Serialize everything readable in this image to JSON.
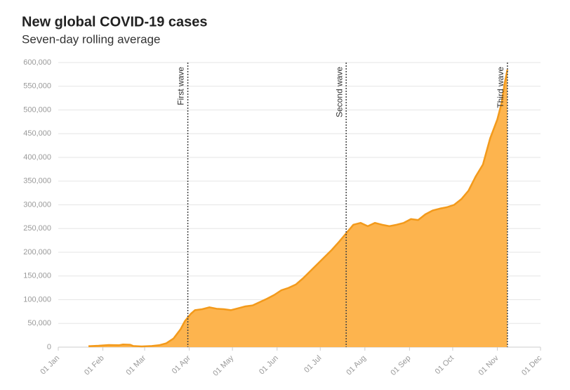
{
  "chart_data": {
    "type": "area",
    "title": "New global COVID-19 cases",
    "subtitle": "Seven-day rolling average",
    "x": [
      21,
      28,
      35,
      42,
      45,
      50,
      52,
      58,
      65,
      70,
      75,
      80,
      85,
      88,
      92,
      95,
      100,
      105,
      110,
      115,
      120,
      125,
      130,
      135,
      140,
      145,
      150,
      155,
      160,
      165,
      170,
      175,
      180,
      185,
      190,
      195,
      200,
      205,
      210,
      215,
      220,
      225,
      230,
      235,
      240,
      245,
      250,
      255,
      260,
      265,
      270,
      275,
      280,
      285,
      290,
      295,
      300,
      305,
      308,
      310,
      312
    ],
    "values": [
      2000,
      3000,
      4500,
      4000,
      5500,
      5000,
      2500,
      1500,
      2500,
      4000,
      8000,
      18000,
      38000,
      55000,
      70000,
      78000,
      80000,
      84000,
      81000,
      80000,
      78000,
      82000,
      86000,
      88000,
      95000,
      102000,
      110000,
      120000,
      125000,
      132000,
      145000,
      160000,
      175000,
      190000,
      205000,
      222000,
      240000,
      258000,
      262000,
      255000,
      262000,
      258000,
      255000,
      258000,
      262000,
      270000,
      268000,
      280000,
      288000,
      292000,
      295000,
      300000,
      312000,
      330000,
      360000,
      385000,
      440000,
      480000,
      515000,
      555000,
      585000
    ],
    "color": "#fdb44e",
    "line_color": "#f39a1b",
    "xlim": [
      0,
      335
    ],
    "xticks": [
      {
        "value": 0,
        "label": "01 Jan"
      },
      {
        "value": 31,
        "label": "01 Feb"
      },
      {
        "value": 60,
        "label": "01 Mar"
      },
      {
        "value": 91,
        "label": "01 Apr"
      },
      {
        "value": 121,
        "label": "01 May"
      },
      {
        "value": 152,
        "label": "01 Jun"
      },
      {
        "value": 182,
        "label": "01 Jul"
      },
      {
        "value": 213,
        "label": "01 Aug"
      },
      {
        "value": 244,
        "label": "01 Sep"
      },
      {
        "value": 274,
        "label": "01 Oct"
      },
      {
        "value": 305,
        "label": "01 Nov"
      },
      {
        "value": 335,
        "label": "01 Dec"
      }
    ],
    "ylim": [
      0,
      600000
    ],
    "yticks": [
      0,
      {
        "value": 50000,
        "label": "50,000"
      },
      {
        "value": 100000,
        "label": "100,000"
      },
      {
        "value": 150000,
        "label": "150,000"
      },
      {
        "value": 200000,
        "label": "200,000"
      },
      {
        "value": 250000,
        "label": "250,000"
      },
      {
        "value": 300000,
        "label": "300,000"
      },
      {
        "value": 350000,
        "label": "350,000"
      },
      {
        "value": 400000,
        "label": "400,000"
      },
      {
        "value": 450000,
        "label": "450,000"
      },
      {
        "value": 500000,
        "label": "500,000"
      },
      {
        "value": 550000,
        "label": "550,000"
      },
      {
        "value": 600000,
        "label": "600,000"
      }
    ],
    "grid": true,
    "annotations": [
      {
        "label": "First wave",
        "x": 90
      },
      {
        "label": "Second wave",
        "x": 200
      },
      {
        "label": "Third wave",
        "x": 312
      }
    ]
  }
}
